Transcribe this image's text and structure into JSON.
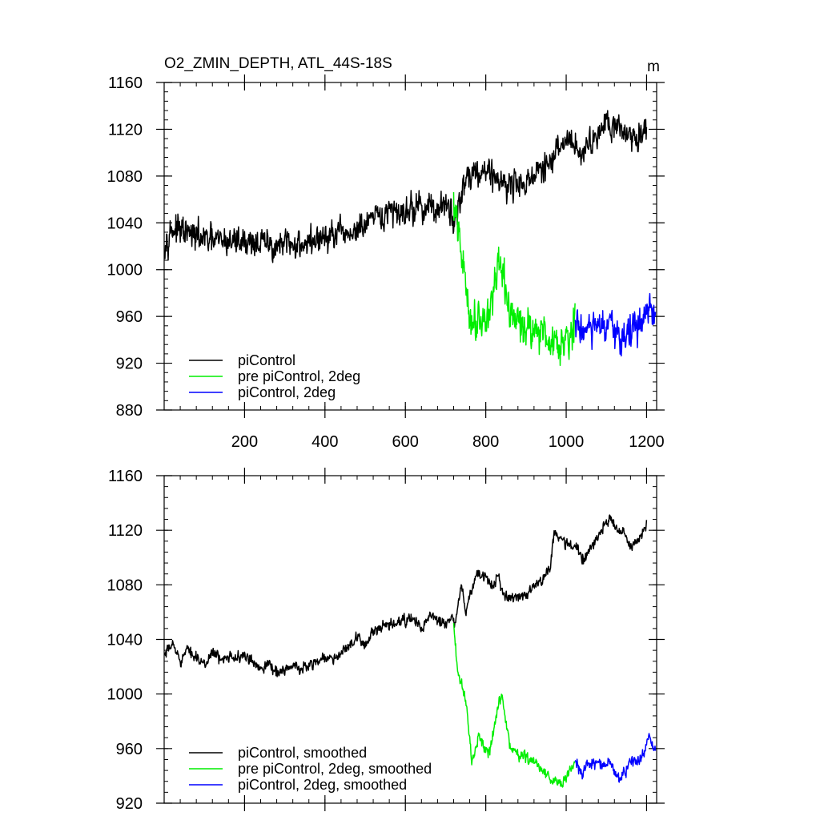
{
  "chart_data": [
    {
      "type": "line",
      "title": "O2_ZMIN_DEPTH, ATL_44S-18S",
      "units": "m",
      "xlabel": "",
      "ylabel": "",
      "xlim": [
        0,
        1225
      ],
      "ylim": [
        880,
        1160
      ],
      "xticks": [
        200,
        400,
        600,
        800,
        1000,
        1200
      ],
      "yticks": [
        880,
        920,
        960,
        1000,
        1040,
        1080,
        1120,
        1160
      ],
      "show_xtick_labels": true,
      "grid": false,
      "legend_position": "bottom-left",
      "series": [
        {
          "name": "piControl",
          "color": "#000000",
          "x_range": [
            1,
            1200
          ],
          "anchors": [
            [
              1,
              1025
            ],
            [
              20,
              1035
            ],
            [
              60,
              1030
            ],
            [
              120,
              1024
            ],
            [
              200,
              1025
            ],
            [
              280,
              1020
            ],
            [
              340,
              1022
            ],
            [
              400,
              1027
            ],
            [
              450,
              1030
            ],
            [
              480,
              1033
            ],
            [
              520,
              1042
            ],
            [
              560,
              1048
            ],
            [
              600,
              1051
            ],
            [
              640,
              1054
            ],
            [
              680,
              1052
            ],
            [
              700,
              1054
            ],
            [
              715,
              1047
            ],
            [
              722,
              1040
            ],
            [
              740,
              1068
            ],
            [
              760,
              1083
            ],
            [
              800,
              1085
            ],
            [
              830,
              1078
            ],
            [
              860,
              1072
            ],
            [
              900,
              1075
            ],
            [
              940,
              1085
            ],
            [
              960,
              1090
            ],
            [
              980,
              1102
            ],
            [
              1000,
              1112
            ],
            [
              1020,
              1108
            ],
            [
              1040,
              1100
            ],
            [
              1060,
              1108
            ],
            [
              1080,
              1118
            ],
            [
              1100,
              1130
            ],
            [
              1120,
              1125
            ],
            [
              1140,
              1118
            ],
            [
              1160,
              1115
            ],
            [
              1180,
              1112
            ],
            [
              1200,
              1125
            ]
          ],
          "noise": 9
        },
        {
          "name": "pre piControl, 2deg",
          "color": "#00ee00",
          "x_range": [
            720,
            1022
          ],
          "anchors": [
            [
              720,
              1055
            ],
            [
              730,
              1035
            ],
            [
              740,
              1010
            ],
            [
              750,
              990
            ],
            [
              760,
              960
            ],
            [
              770,
              955
            ],
            [
              780,
              962
            ],
            [
              790,
              960
            ],
            [
              800,
              955
            ],
            [
              810,
              968
            ],
            [
              820,
              985
            ],
            [
              835,
              1000
            ],
            [
              845,
              990
            ],
            [
              860,
              962
            ],
            [
              880,
              955
            ],
            [
              900,
              952
            ],
            [
              920,
              950
            ],
            [
              940,
              947
            ],
            [
              960,
              940
            ],
            [
              980,
              938
            ],
            [
              1000,
              944
            ],
            [
              1022,
              952
            ]
          ],
          "noise": 12
        },
        {
          "name": "piControl, 2deg",
          "color": "#0000ff",
          "x_range": [
            1022,
            1222
          ],
          "anchors": [
            [
              1022,
              952
            ],
            [
              1050,
              948
            ],
            [
              1080,
              950
            ],
            [
              1110,
              948
            ],
            [
              1130,
              942
            ],
            [
              1150,
              945
            ],
            [
              1170,
              950
            ],
            [
              1190,
              955
            ],
            [
              1200,
              960
            ],
            [
              1210,
              965
            ],
            [
              1222,
              958
            ]
          ],
          "noise": 11
        }
      ]
    },
    {
      "type": "line",
      "title": "",
      "xlabel": "",
      "ylabel": "",
      "xlim": [
        0,
        1225
      ],
      "ylim": [
        920,
        1160
      ],
      "xticks": [
        200,
        400,
        600,
        800,
        1000,
        1200
      ],
      "yticks": [
        920,
        960,
        1000,
        1040,
        1080,
        1120,
        1160
      ],
      "show_xtick_labels": false,
      "grid": false,
      "legend_position": "bottom-left",
      "series": [
        {
          "name": "piControl, smoothed",
          "color": "#000000",
          "x_range": [
            1,
            1200
          ],
          "anchors": [
            [
              1,
              1027
            ],
            [
              20,
              1037
            ],
            [
              40,
              1025
            ],
            [
              60,
              1032
            ],
            [
              80,
              1028
            ],
            [
              100,
              1020
            ],
            [
              120,
              1032
            ],
            [
              140,
              1024
            ],
            [
              160,
              1030
            ],
            [
              180,
              1026
            ],
            [
              200,
              1028
            ],
            [
              220,
              1023
            ],
            [
              240,
              1020
            ],
            [
              260,
              1022
            ],
            [
              280,
              1016
            ],
            [
              300,
              1018
            ],
            [
              320,
              1020
            ],
            [
              340,
              1018
            ],
            [
              360,
              1022
            ],
            [
              380,
              1024
            ],
            [
              400,
              1027
            ],
            [
              420,
              1025
            ],
            [
              440,
              1030
            ],
            [
              460,
              1035
            ],
            [
              480,
              1040
            ],
            [
              500,
              1037
            ],
            [
              520,
              1045
            ],
            [
              540,
              1048
            ],
            [
              560,
              1050
            ],
            [
              580,
              1052
            ],
            [
              600,
              1054
            ],
            [
              620,
              1055
            ],
            [
              640,
              1048
            ],
            [
              660,
              1056
            ],
            [
              680,
              1055
            ],
            [
              700,
              1050
            ],
            [
              715,
              1058
            ],
            [
              722,
              1048
            ],
            [
              740,
              1080
            ],
            [
              750,
              1060
            ],
            [
              760,
              1072
            ],
            [
              780,
              1088
            ],
            [
              800,
              1085
            ],
            [
              820,
              1078
            ],
            [
              830,
              1090
            ],
            [
              840,
              1075
            ],
            [
              860,
              1070
            ],
            [
              880,
              1072
            ],
            [
              900,
              1073
            ],
            [
              920,
              1078
            ],
            [
              940,
              1085
            ],
            [
              960,
              1092
            ],
            [
              970,
              1120
            ],
            [
              980,
              1115
            ],
            [
              1000,
              1110
            ],
            [
              1020,
              1108
            ],
            [
              1040,
              1100
            ],
            [
              1060,
              1106
            ],
            [
              1080,
              1115
            ],
            [
              1100,
              1126
            ],
            [
              1110,
              1130
            ],
            [
              1120,
              1122
            ],
            [
              1140,
              1118
            ],
            [
              1160,
              1108
            ],
            [
              1180,
              1112
            ],
            [
              1200,
              1124
            ]
          ],
          "noise": 3
        },
        {
          "name": "pre piControl, 2deg, smoothed",
          "color": "#00ee00",
          "x_range": [
            720,
            1022
          ],
          "anchors": [
            [
              720,
              1050
            ],
            [
              730,
              1015
            ],
            [
              740,
              1008
            ],
            [
              750,
              995
            ],
            [
              760,
              970
            ],
            [
              765,
              950
            ],
            [
              775,
              962
            ],
            [
              785,
              968
            ],
            [
              800,
              958
            ],
            [
              810,
              958
            ],
            [
              820,
              975
            ],
            [
              830,
              990
            ],
            [
              840,
              1000
            ],
            [
              850,
              978
            ],
            [
              860,
              962
            ],
            [
              880,
              955
            ],
            [
              900,
              955
            ],
            [
              920,
              950
            ],
            [
              940,
              945
            ],
            [
              960,
              938
            ],
            [
              980,
              936
            ],
            [
              990,
              934
            ],
            [
              1000,
              938
            ],
            [
              1010,
              945
            ],
            [
              1022,
              950
            ]
          ],
          "noise": 3
        },
        {
          "name": "piControl, 2deg, smoothed",
          "color": "#0000ff",
          "x_range": [
            1022,
            1222
          ],
          "anchors": [
            [
              1022,
              950
            ],
            [
              1030,
              947
            ],
            [
              1040,
              940
            ],
            [
              1050,
              948
            ],
            [
              1070,
              950
            ],
            [
              1090,
              948
            ],
            [
              1110,
              950
            ],
            [
              1125,
              942
            ],
            [
              1135,
              938
            ],
            [
              1150,
              945
            ],
            [
              1165,
              952
            ],
            [
              1180,
              950
            ],
            [
              1195,
              958
            ],
            [
              1205,
              968
            ],
            [
              1212,
              962
            ],
            [
              1222,
              958
            ]
          ],
          "noise": 3
        }
      ]
    }
  ]
}
